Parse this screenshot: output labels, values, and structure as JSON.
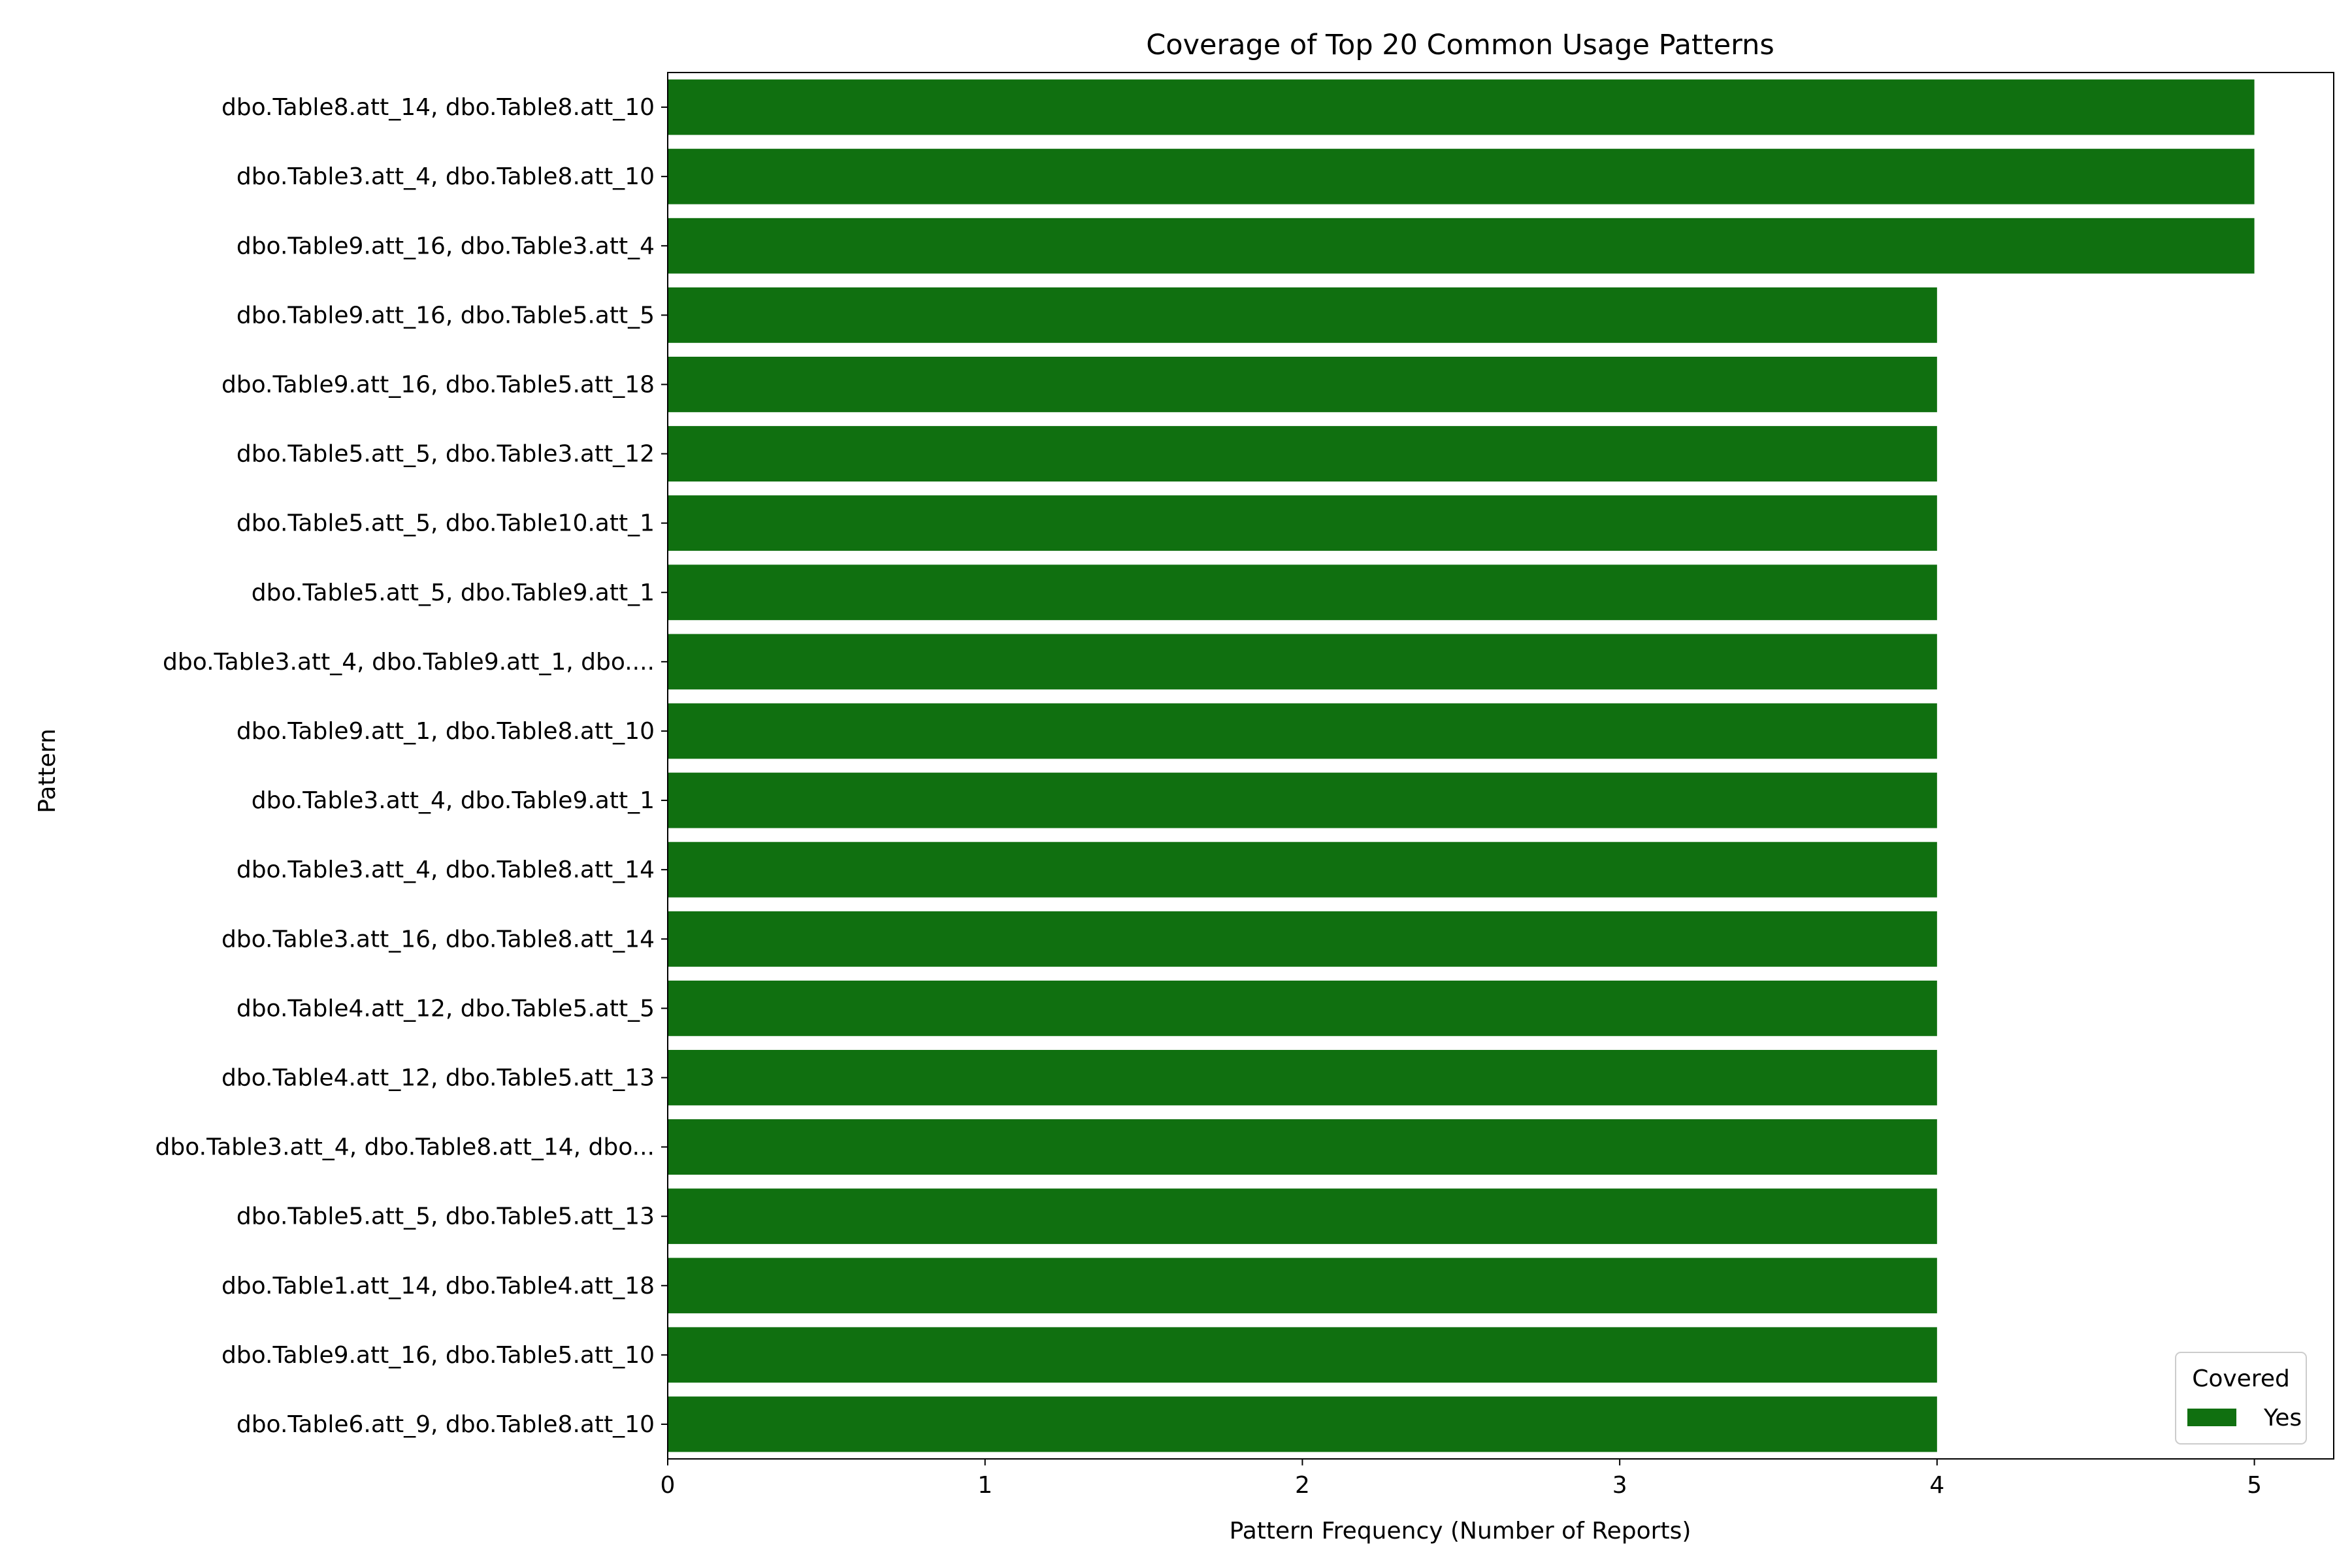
{
  "chart_data": {
    "type": "bar",
    "orientation": "horizontal",
    "title": "Coverage of Top 20 Common Usage Patterns",
    "xlabel": "Pattern Frequency (Number of Reports)",
    "ylabel": "Pattern",
    "xlim": [
      0,
      5.25
    ],
    "xticks": [
      "0",
      "1",
      "2",
      "3",
      "4",
      "5"
    ],
    "grid": false,
    "categories": [
      "dbo.Table8.att_14, dbo.Table8.att_10",
      "dbo.Table3.att_4, dbo.Table8.att_10",
      "dbo.Table9.att_16, dbo.Table3.att_4",
      "dbo.Table9.att_16, dbo.Table5.att_5",
      "dbo.Table9.att_16, dbo.Table5.att_18",
      "dbo.Table5.att_5, dbo.Table3.att_12",
      "dbo.Table5.att_5, dbo.Table10.att_1",
      "dbo.Table5.att_5, dbo.Table9.att_1",
      "dbo.Table3.att_4, dbo.Table9.att_1, dbo....",
      "dbo.Table9.att_1, dbo.Table8.att_10",
      "dbo.Table3.att_4, dbo.Table9.att_1",
      "dbo.Table3.att_4, dbo.Table8.att_14",
      "dbo.Table3.att_16, dbo.Table8.att_14",
      "dbo.Table4.att_12, dbo.Table5.att_5",
      "dbo.Table4.att_12, dbo.Table5.att_13",
      "dbo.Table3.att_4, dbo.Table8.att_14, dbo...",
      "dbo.Table5.att_5, dbo.Table5.att_13",
      "dbo.Table1.att_14, dbo.Table4.att_18",
      "dbo.Table9.att_16, dbo.Table5.att_10",
      "dbo.Table6.att_9, dbo.Table8.att_10"
    ],
    "series": [
      {
        "name": "Yes",
        "color": "#107010",
        "values": [
          5,
          5,
          5,
          4,
          4,
          4,
          4,
          4,
          4,
          4,
          4,
          4,
          4,
          4,
          4,
          4,
          4,
          4,
          4,
          4
        ]
      }
    ],
    "legend": {
      "title": "Covered",
      "placement": "lower-right"
    }
  }
}
